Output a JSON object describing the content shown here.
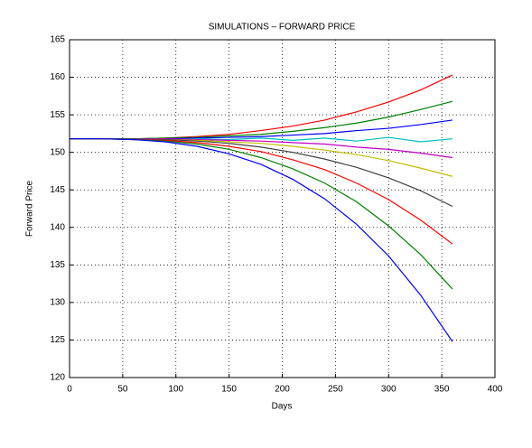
{
  "chart_data": {
    "type": "line",
    "title": "SIMULATIONS – FORWARD PRICE",
    "x_label": "Days",
    "y_label": "Forward Price",
    "x": [
      0,
      30,
      60,
      90,
      120,
      150,
      180,
      210,
      240,
      270,
      300,
      330,
      360
    ],
    "series": [
      {
        "color": "#ff0000",
        "values": [
          151.8,
          151.8,
          151.8,
          151.9,
          152.1,
          152.4,
          152.9,
          153.5,
          154.3,
          155.4,
          156.7,
          158.3,
          160.3
        ]
      },
      {
        "color": "#008000",
        "values": [
          151.8,
          151.8,
          151.8,
          151.9,
          152.0,
          152.2,
          152.4,
          152.8,
          153.3,
          153.9,
          154.7,
          155.7,
          156.8
        ]
      },
      {
        "color": "#0000ff",
        "values": [
          151.8,
          151.8,
          151.8,
          151.8,
          151.9,
          152.0,
          152.1,
          152.3,
          152.5,
          152.9,
          153.2,
          153.7,
          154.3
        ]
      },
      {
        "color": "#00bfbf",
        "values": [
          151.8,
          151.8,
          151.8,
          151.7,
          151.8,
          151.7,
          151.9,
          151.6,
          151.9,
          151.5,
          152.0,
          151.4,
          151.8
        ]
      },
      {
        "color": "#bf00bf",
        "values": [
          151.8,
          151.8,
          151.8,
          151.8,
          151.7,
          151.6,
          151.5,
          151.3,
          151.1,
          150.7,
          150.4,
          149.9,
          149.3
        ]
      },
      {
        "color": "#bfbf00",
        "values": [
          151.8,
          151.8,
          151.8,
          151.7,
          151.6,
          151.4,
          151.2,
          150.8,
          150.3,
          149.7,
          148.9,
          147.9,
          146.8
        ]
      },
      {
        "color": "#404040",
        "values": [
          151.8,
          151.8,
          151.8,
          151.7,
          151.5,
          151.2,
          150.7,
          150.0,
          149.1,
          148.0,
          146.6,
          144.9,
          142.8
        ]
      },
      {
        "color": "#ff0000",
        "values": [
          151.8,
          151.8,
          151.7,
          151.6,
          151.3,
          150.8,
          150.1,
          149.0,
          147.7,
          145.9,
          143.7,
          141.0,
          137.8
        ]
      },
      {
        "color": "#008000",
        "values": [
          151.8,
          151.8,
          151.7,
          151.5,
          151.1,
          150.4,
          149.3,
          147.8,
          145.9,
          143.4,
          140.2,
          136.4,
          131.8
        ]
      },
      {
        "color": "#0000ff",
        "values": [
          151.8,
          151.8,
          151.7,
          151.4,
          150.8,
          149.8,
          148.4,
          146.4,
          143.8,
          140.4,
          136.2,
          131.0,
          124.8
        ]
      }
    ],
    "xlim": [
      0,
      400
    ],
    "xticks": [
      0,
      50,
      100,
      150,
      200,
      250,
      300,
      350,
      400
    ],
    "ylim": [
      120,
      165
    ],
    "yticks": [
      120,
      125,
      130,
      135,
      140,
      145,
      150,
      155,
      160,
      165
    ],
    "grid": true
  }
}
